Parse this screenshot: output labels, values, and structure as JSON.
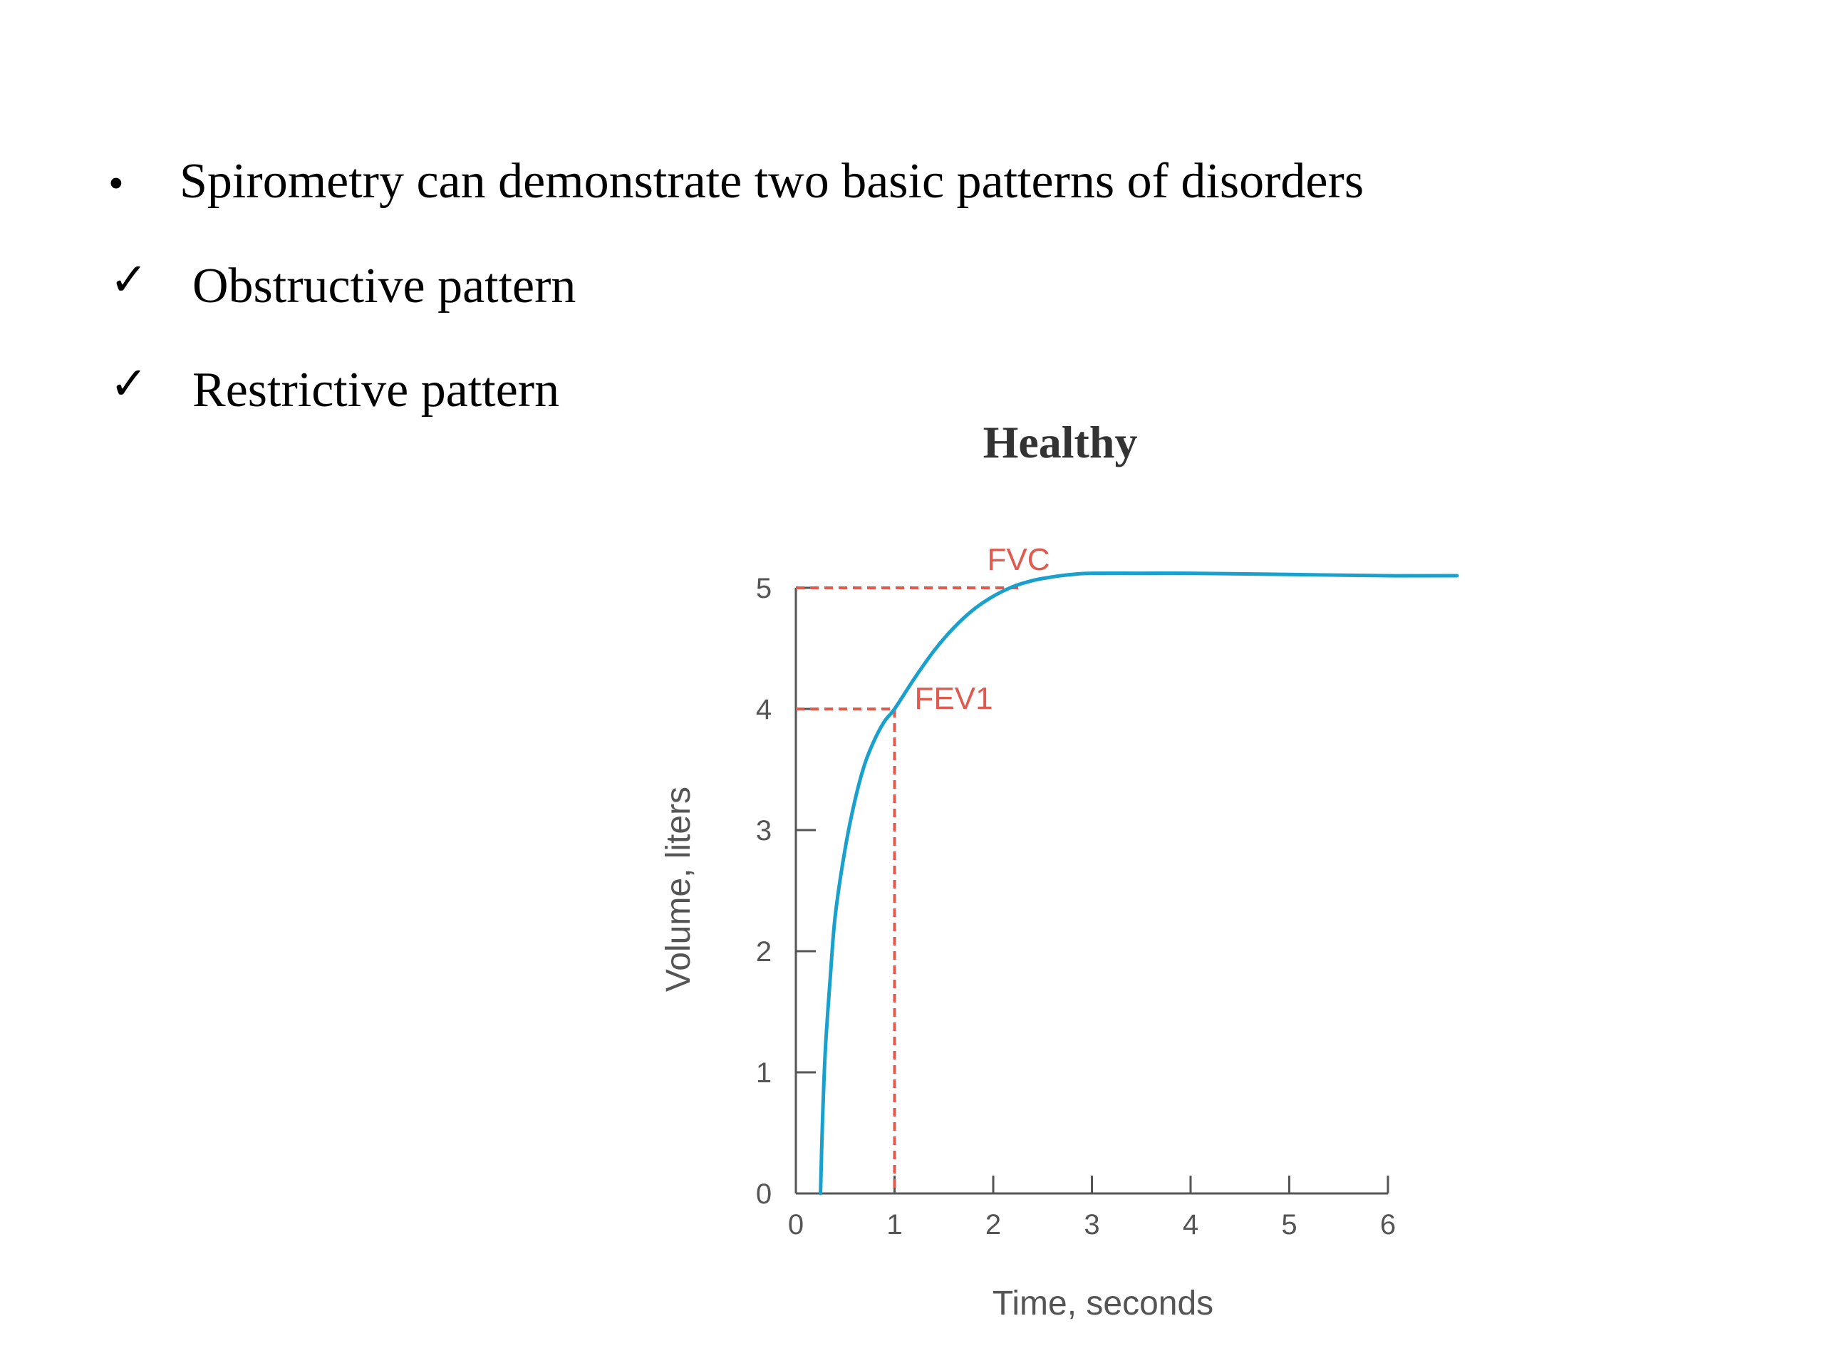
{
  "bullets": {
    "items": [
      {
        "marker": "•",
        "text": "Spirometry can demonstrate two basic patterns of disorders"
      },
      {
        "marker": "✓",
        "text": "Obstructive pattern"
      },
      {
        "marker": "✓",
        "text": "Restrictive pattern"
      }
    ]
  },
  "chart_data": {
    "type": "line",
    "title": "Healthy",
    "xlabel": "Time, seconds",
    "ylabel": "Volume, liters",
    "xlim": [
      0,
      6
    ],
    "ylim": [
      0,
      5
    ],
    "x_ticks": [
      "0",
      "1",
      "2",
      "3",
      "4",
      "5",
      "6"
    ],
    "y_ticks": [
      "0",
      "1",
      "2",
      "3",
      "4",
      "5"
    ],
    "grid": false,
    "series": [
      {
        "color": "#1aa0cc",
        "x": [
          0.25,
          0.27,
          0.3,
          0.35,
          0.4,
          0.5,
          0.6,
          0.7,
          0.8,
          0.9,
          1.0,
          1.2,
          1.4,
          1.6,
          1.8,
          2.0,
          2.2,
          2.4,
          2.6,
          2.8,
          3.0,
          3.5,
          4.0,
          5.0,
          6.0,
          6.7
        ],
        "y": [
          0.0,
          0.6,
          1.2,
          1.8,
          2.3,
          2.85,
          3.25,
          3.55,
          3.75,
          3.9,
          4.0,
          4.25,
          4.48,
          4.67,
          4.82,
          4.93,
          5.01,
          5.06,
          5.09,
          5.11,
          5.12,
          5.12,
          5.12,
          5.11,
          5.1,
          5.1
        ]
      }
    ],
    "annotations": [
      {
        "label": "FVC",
        "x": 2.3,
        "y": 5.0,
        "color": "#e05a50"
      },
      {
        "label": "FEV1",
        "x": 1.0,
        "y": 4.0,
        "color": "#e05a50"
      }
    ]
  }
}
